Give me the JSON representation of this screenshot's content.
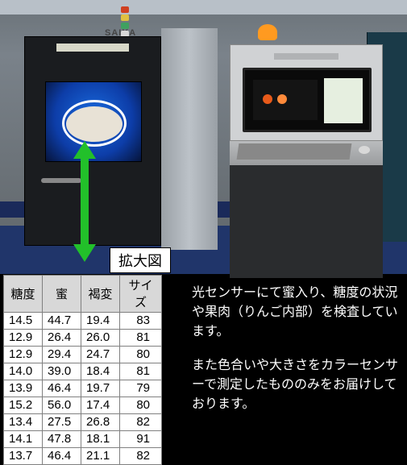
{
  "enlarge_label": "拡大図",
  "photo": {
    "saika_text": "SAIKA"
  },
  "table": {
    "columns": [
      "糖度",
      "蜜",
      "褐変",
      "サイズ"
    ],
    "rows": [
      [
        "14.5",
        "44.7",
        "19.4",
        "83"
      ],
      [
        "12.9",
        "26.4",
        "26.0",
        "81"
      ],
      [
        "12.9",
        "29.4",
        "24.7",
        "80"
      ],
      [
        "14.0",
        "39.0",
        "18.4",
        "81"
      ],
      [
        "13.9",
        "46.4",
        "19.7",
        "79"
      ],
      [
        "15.2",
        "56.0",
        "17.4",
        "80"
      ],
      [
        "13.4",
        "27.5",
        "26.8",
        "82"
      ],
      [
        "14.1",
        "47.8",
        "18.1",
        "91"
      ],
      [
        "13.7",
        "46.4",
        "21.1",
        "82"
      ]
    ],
    "header_bg": "#d8d8d8",
    "border_color": "#808080",
    "font_size": 15
  },
  "description": {
    "para1": "光センサーにて蜜入り、糖度の状況や果肉（りんご内部）を検査しています。",
    "para2": "また色合いや大きさをカラーセンサーで測定したもののみをお届けしております。"
  },
  "colors": {
    "arrow": "#22c02a",
    "text_white": "#ffffff",
    "bg_black": "#000000",
    "warn_lamp": "#ff9a20",
    "floor": "#20356a"
  }
}
